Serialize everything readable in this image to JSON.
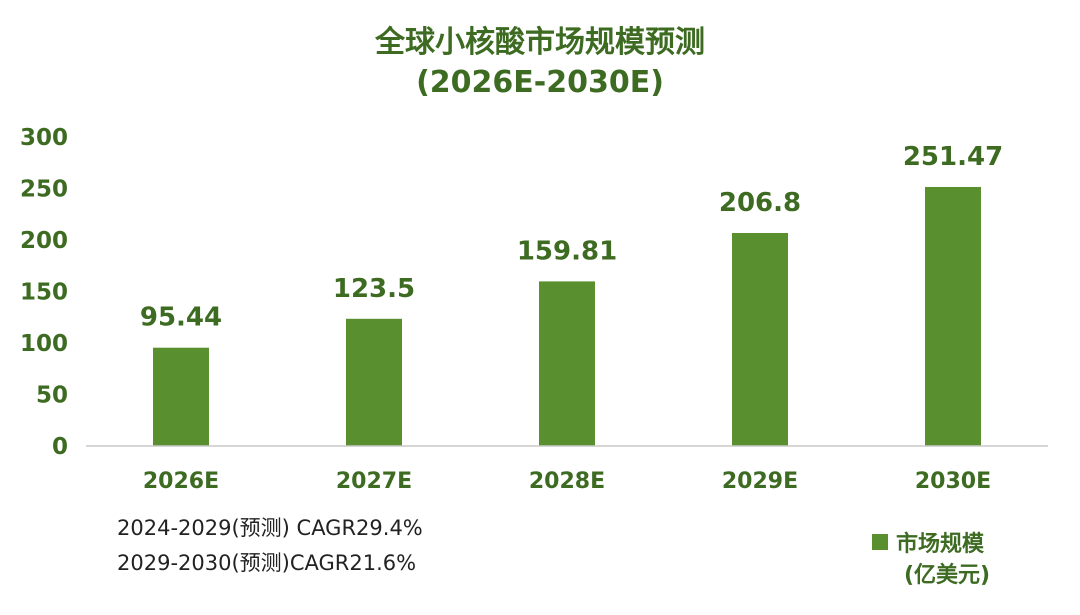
{
  "colors": {
    "accent": "#5a8f2f",
    "title": "#3d6b22",
    "axis_text": "#3d6b22",
    "note_text": "#222222",
    "axis_line": "#c8c8c8"
  },
  "chart_data": {
    "type": "bar",
    "title_line1": "全球小核酸市场规模预测",
    "title_line2": "(2026E-2030E)",
    "categories": [
      "2026E",
      "2027E",
      "2028E",
      "2029E",
      "2030E"
    ],
    "values": [
      95.44,
      123.5,
      159.81,
      206.8,
      251.47
    ],
    "value_labels": [
      "95.44",
      "123.5",
      "159.81",
      "206.8",
      "251.47"
    ],
    "ylim": [
      0,
      300
    ],
    "yticks": [
      "0",
      "50",
      "100",
      "150",
      "200",
      "250",
      "300"
    ],
    "grid": false,
    "legend": {
      "position": "bottom-right",
      "label_line1": "市场规模",
      "label_line2": "(亿美元)"
    },
    "annotations": [
      "2024-2029(预测) CAGR29.4%",
      "2029-2030(预测)CAGR21.6%"
    ]
  }
}
